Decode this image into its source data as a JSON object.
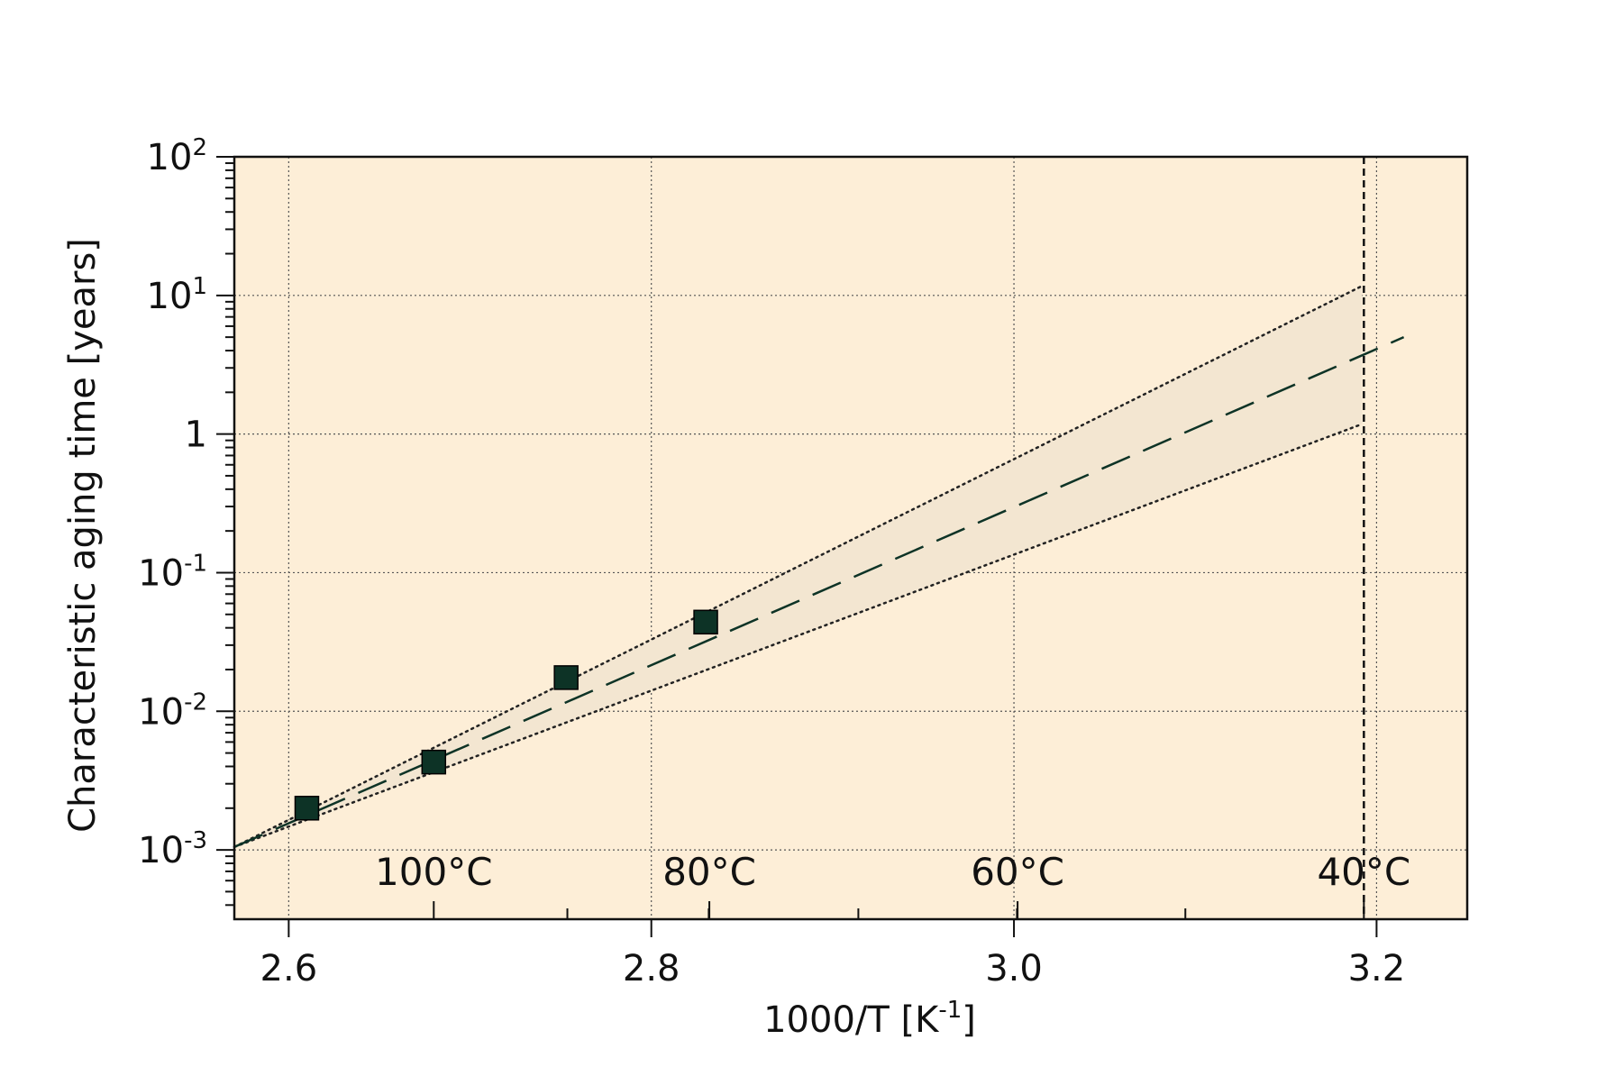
{
  "chart_data": {
    "type": "scatter",
    "title": "",
    "xlabel": "1000/T [K⁻¹]",
    "ylabel": "Characteristic aging time [years]",
    "xlim": [
      2.57,
      3.25
    ],
    "ylim_log10": [
      -3.5,
      2
    ],
    "y_scale": "log",
    "grid": true,
    "colors": {
      "plot_background": "#fdeed7",
      "band_fill": "#f3e6d1",
      "marker": "#0d3326",
      "fit_line": "#0d3326"
    },
    "x_ticks": [
      {
        "value": 2.6,
        "label": "2.6"
      },
      {
        "value": 2.8,
        "label": "2.8"
      },
      {
        "value": 3.0,
        "label": "3.0"
      },
      {
        "value": 3.2,
        "label": "3.2"
      }
    ],
    "y_ticks": [
      {
        "exp": -3,
        "base": "10",
        "sup": "-3"
      },
      {
        "exp": -2,
        "base": "10",
        "sup": "-2"
      },
      {
        "exp": -1,
        "base": "10",
        "sup": "-1"
      },
      {
        "exp": 0,
        "base": "1",
        "sup": ""
      },
      {
        "exp": 1,
        "base": "10",
        "sup": "1"
      },
      {
        "exp": 2,
        "base": "10",
        "sup": "2"
      }
    ],
    "series": [
      {
        "type": "scatter",
        "x": [
          2.61,
          2.68,
          2.753,
          2.83
        ],
        "y": [
          0.002,
          0.0043,
          0.0175,
          0.044
        ]
      }
    ],
    "fit_line": {
      "from": [
        2.57,
        0.00105
      ],
      "to": [
        3.215,
        5.0
      ]
    },
    "confidence_upper": {
      "from": [
        2.57,
        0.00105
      ],
      "to": [
        3.192,
        11.7
      ]
    },
    "confidence_lower": {
      "from": [
        2.57,
        0.00105
      ],
      "to": [
        3.192,
        1.18
      ]
    },
    "temperature_markers": [
      {
        "x": 2.68,
        "label": "100°C"
      },
      {
        "x": 2.832,
        "label": "80°C"
      },
      {
        "x": 3.002,
        "label": "60°C"
      },
      {
        "x": 3.193,
        "label": "40°C"
      }
    ],
    "vertical_reference_x": 3.193
  }
}
